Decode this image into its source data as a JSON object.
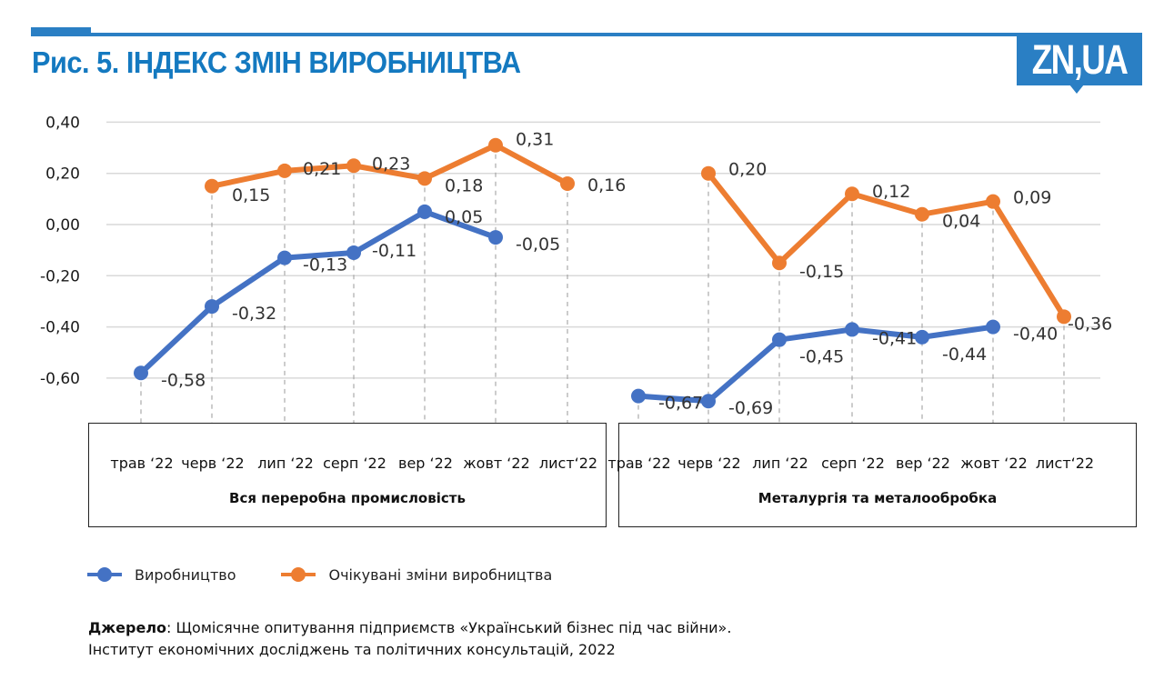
{
  "header": {
    "title": "Рис. 5. ІНДЕКС ЗМІН ВИРОБНИЦТВА",
    "logo_text": "ZN,UA",
    "accent_color": "#2a7fc4",
    "title_color": "#1479c0"
  },
  "chart_data": {
    "type": "line",
    "title": "Рис. 5. ІНДЕКС ЗМІН ВИРОБНИЦТВА",
    "ylim": [
      -0.7,
      0.4
    ],
    "yticks": [
      0.4,
      0.2,
      0.0,
      -0.2,
      -0.4,
      -0.6
    ],
    "ytick_labels": [
      "0,40",
      "0,20",
      "0,00",
      "-0,20",
      "-0,40",
      "-0,60"
    ],
    "grid": true,
    "legend_position": "bottom-left",
    "categories": [
      "трав ‘22",
      "черв ‘22",
      "лип ‘22",
      "серп ‘22",
      "вер ‘22",
      "жовт ‘22",
      "лист‘22"
    ],
    "groups": [
      {
        "name": "Вся переробна промисловість",
        "series": [
          {
            "name": "Виробництво",
            "color": "#4472c4",
            "values": [
              -0.58,
              -0.32,
              -0.13,
              -0.11,
              0.05,
              -0.05,
              null
            ],
            "labels": [
              "-0,58",
              "-0,32",
              "-0,13",
              "-0,11",
              "0,05",
              "-0,05",
              ""
            ]
          },
          {
            "name": "Очікувані зміни виробництва",
            "color": "#ed7d31",
            "values": [
              null,
              0.15,
              0.21,
              0.23,
              0.18,
              0.31,
              0.16
            ],
            "labels": [
              "",
              "0,15",
              "0,21",
              "0,23",
              "0,18",
              "0,31",
              "0,16"
            ]
          }
        ]
      },
      {
        "name": "Металургія та металообробка",
        "series": [
          {
            "name": "Виробництво",
            "color": "#4472c4",
            "values": [
              -0.67,
              -0.69,
              -0.45,
              -0.41,
              -0.44,
              -0.4,
              null
            ],
            "labels": [
              "-0,67",
              "-0,69",
              "-0,45",
              "-0,41",
              "-0,44",
              "-0,40",
              ""
            ]
          },
          {
            "name": "Очікувані зміни виробництва",
            "color": "#ed7d31",
            "values": [
              null,
              0.2,
              -0.15,
              0.12,
              0.04,
              0.09,
              -0.36
            ],
            "labels": [
              "",
              "0,20",
              "-0,15",
              "0,12",
              "0,04",
              "0,09",
              "-0,36"
            ]
          }
        ]
      }
    ]
  },
  "legend": [
    {
      "label": "Виробництво",
      "color": "#4472c4"
    },
    {
      "label": "Очікувані зміни виробництва",
      "color": "#ed7d31"
    }
  ],
  "source": {
    "label": "Джерело",
    "line1": ": Щомісячне опитування підприємств «Український бізнес під час війни».",
    "line2": "Інститут економічних досліджень та політичних консультацій, 2022"
  }
}
